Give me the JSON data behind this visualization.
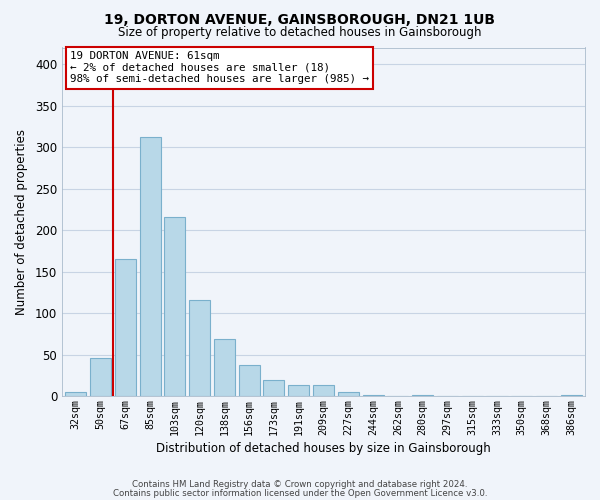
{
  "title": "19, DORTON AVENUE, GAINSBOROUGH, DN21 1UB",
  "subtitle": "Size of property relative to detached houses in Gainsborough",
  "xlabel": "Distribution of detached houses by size in Gainsborough",
  "ylabel": "Number of detached properties",
  "bar_labels": [
    "32sqm",
    "50sqm",
    "67sqm",
    "85sqm",
    "103sqm",
    "120sqm",
    "138sqm",
    "156sqm",
    "173sqm",
    "191sqm",
    "209sqm",
    "227sqm",
    "244sqm",
    "262sqm",
    "280sqm",
    "297sqm",
    "315sqm",
    "333sqm",
    "350sqm",
    "368sqm",
    "386sqm"
  ],
  "bar_values": [
    5,
    46,
    165,
    312,
    216,
    116,
    69,
    38,
    20,
    13,
    13,
    5,
    1,
    0,
    2,
    0,
    0,
    0,
    0,
    0,
    1
  ],
  "bar_color": "#b8d8e8",
  "bar_edge_color": "#7ab0cc",
  "marker_color": "#cc0000",
  "ylim": [
    0,
    420
  ],
  "yticks": [
    0,
    50,
    100,
    150,
    200,
    250,
    300,
    350,
    400
  ],
  "annotation_title": "19 DORTON AVENUE: 61sqm",
  "annotation_line1": "← 2% of detached houses are smaller (18)",
  "annotation_line2": "98% of semi-detached houses are larger (985) →",
  "footer_line1": "Contains HM Land Registry data © Crown copyright and database right 2024.",
  "footer_line2": "Contains public sector information licensed under the Open Government Licence v3.0.",
  "bg_color": "#f0f4fa",
  "grid_color": "#c8d4e4"
}
